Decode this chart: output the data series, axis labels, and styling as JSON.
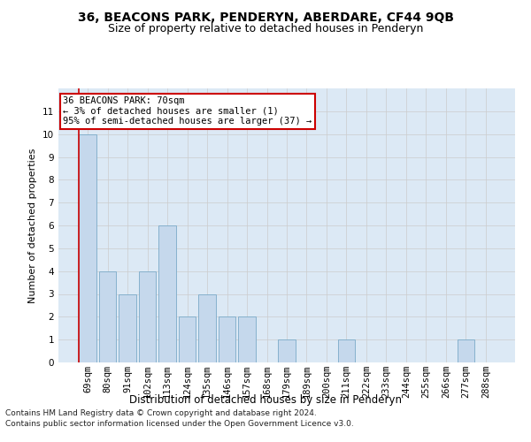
{
  "title": "36, BEACONS PARK, PENDERYN, ABERDARE, CF44 9QB",
  "subtitle": "Size of property relative to detached houses in Penderyn",
  "xlabel": "Distribution of detached houses by size in Penderyn",
  "ylabel": "Number of detached properties",
  "categories": [
    "69sqm",
    "80sqm",
    "91sqm",
    "102sqm",
    "113sqm",
    "124sqm",
    "135sqm",
    "146sqm",
    "157sqm",
    "168sqm",
    "179sqm",
    "189sqm",
    "200sqm",
    "211sqm",
    "222sqm",
    "233sqm",
    "244sqm",
    "255sqm",
    "266sqm",
    "277sqm",
    "288sqm"
  ],
  "values": [
    10,
    4,
    3,
    4,
    6,
    2,
    3,
    2,
    2,
    0,
    1,
    0,
    0,
    1,
    0,
    0,
    0,
    0,
    0,
    1,
    0
  ],
  "bar_color": "#c5d8ec",
  "bar_edge_color": "#7aaac8",
  "annotation_box_text": "36 BEACONS PARK: 70sqm\n← 3% of detached houses are smaller (1)\n95% of semi-detached houses are larger (37) →",
  "annotation_box_color": "#ffffff",
  "annotation_box_edge_color": "#cc0000",
  "red_line_color": "#cc0000",
  "ylim": [
    0,
    12
  ],
  "yticks": [
    0,
    1,
    2,
    3,
    4,
    5,
    6,
    7,
    8,
    9,
    10,
    11
  ],
  "grid_color": "#cccccc",
  "background_color": "#dce9f5",
  "footer_line1": "Contains HM Land Registry data © Crown copyright and database right 2024.",
  "footer_line2": "Contains public sector information licensed under the Open Government Licence v3.0.",
  "title_fontsize": 10,
  "subtitle_fontsize": 9,
  "xlabel_fontsize": 8.5,
  "ylabel_fontsize": 8,
  "tick_fontsize": 7.5,
  "annotation_fontsize": 7.5,
  "footer_fontsize": 6.5
}
